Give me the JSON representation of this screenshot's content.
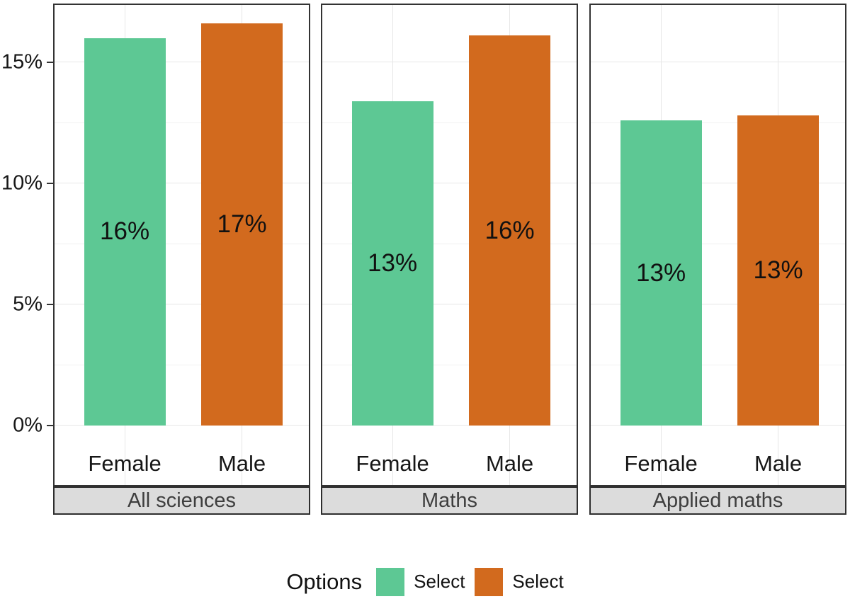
{
  "chart_data": {
    "type": "bar",
    "title": "",
    "facets": [
      {
        "title": "All sciences",
        "bars": [
          {
            "category": "Female",
            "series": "Select",
            "value": 16.0,
            "label": "16%"
          },
          {
            "category": "Male",
            "series": "Select",
            "value": 16.6,
            "label": "17%"
          }
        ]
      },
      {
        "title": "Maths",
        "bars": [
          {
            "category": "Female",
            "series": "Select",
            "value": 13.4,
            "label": "13%"
          },
          {
            "category": "Male",
            "series": "Select",
            "value": 16.1,
            "label": "16%"
          }
        ]
      },
      {
        "title": "Applied maths",
        "bars": [
          {
            "category": "Female",
            "series": "Select",
            "value": 12.6,
            "label": "13%"
          },
          {
            "category": "Male",
            "series": "Select",
            "value": 12.8,
            "label": "13%"
          }
        ]
      }
    ],
    "categories": [
      "Female",
      "Male"
    ],
    "y_axis": {
      "ticks": [
        "0%",
        "5%",
        "10%",
        "15%"
      ],
      "tick_values": [
        0,
        5,
        10,
        15
      ],
      "ylim": [
        -2.5,
        17.4
      ],
      "grid_major": [
        0,
        5,
        10,
        15
      ],
      "grid_minor": [
        2.5,
        7.5,
        12.5
      ]
    },
    "legend": {
      "title": "Options",
      "entries": [
        {
          "label": "Select",
          "color": "#5DC894"
        },
        {
          "label": "Select",
          "color": "#D26A1E"
        }
      ]
    },
    "colors": {
      "female_bar": "#5DC894",
      "male_bar": "#D26A1E",
      "strip_background": "#DCDCDC",
      "panel_border": "#333333",
      "grid_major": "#E7E7E7",
      "grid_minor": "#F1F1F1",
      "strip_text": "#3E3E3E",
      "axis_text": "#161616"
    }
  }
}
